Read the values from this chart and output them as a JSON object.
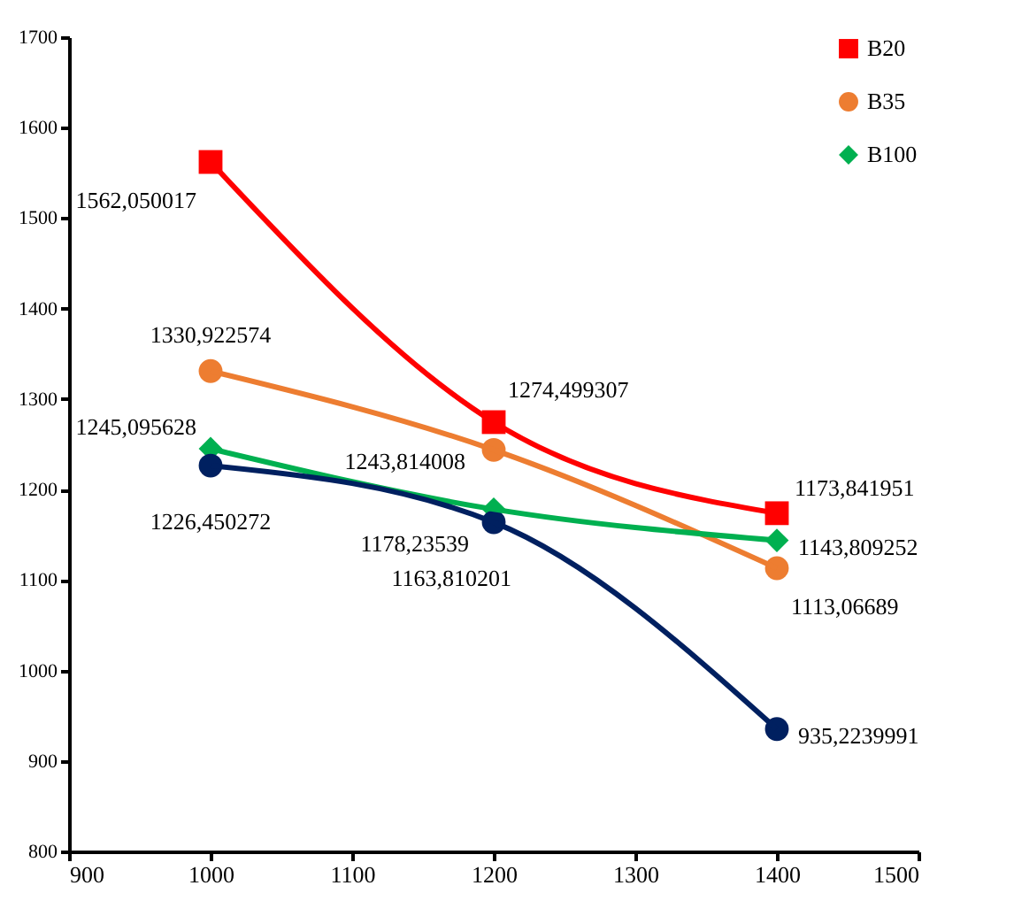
{
  "chart_data": {
    "type": "line",
    "x": [
      1000,
      1200,
      1400
    ],
    "xlim": [
      900,
      1500
    ],
    "xticks": [
      900,
      1000,
      1100,
      1200,
      1300,
      1400,
      1500
    ],
    "ylim": [
      800,
      1700
    ],
    "yticks": [
      800,
      900,
      1000,
      1100,
      1200,
      1300,
      1400,
      1500,
      1600,
      1700
    ],
    "grid": false,
    "legend": "top right",
    "line_style": "solid",
    "series": [
      {
        "name": "B20",
        "color": "#ff0000",
        "marker": "square",
        "values": [
          1562.050017,
          1274.499307,
          1173.841951
        ],
        "value_labels": [
          "1562,050017",
          "1274,499307",
          "1173,841951"
        ]
      },
      {
        "name": "B35",
        "color": "#ed7d31",
        "marker": "circle",
        "values": [
          1330.922574,
          1243.814008,
          1113.06689
        ],
        "value_labels": [
          "1330,922574",
          "1243,814008",
          "1113,06689"
        ]
      },
      {
        "name": "B100",
        "color": "#00b050",
        "marker": "diamond",
        "values": [
          1245.095628,
          1178.23539,
          1143.809252
        ],
        "value_labels": [
          "1245,095628",
          "1178,23539",
          "1143,809252"
        ]
      },
      {
        "color": "#002060",
        "marker": "circle",
        "values": [
          1226.450272,
          1163.810201,
          935.2239991
        ],
        "value_labels": [
          "1226,450272",
          "1163,810201",
          "935,2239991"
        ]
      }
    ]
  }
}
